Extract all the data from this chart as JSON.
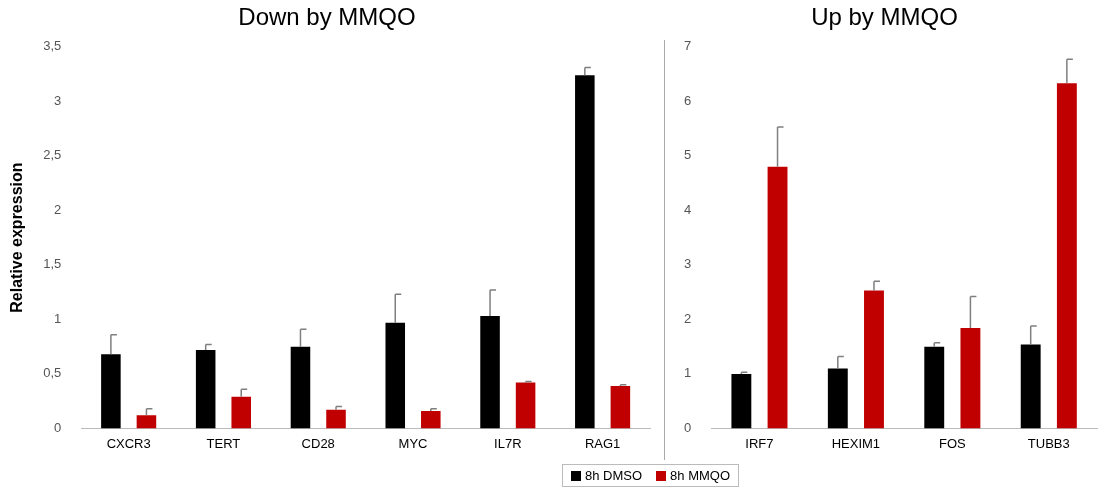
{
  "chart_data": [
    {
      "type": "bar",
      "title": "Down by MMQO",
      "ylabel": "Relative expression",
      "categories": [
        "CXCR3",
        "TERT",
        "CD28",
        "MYC",
        "IL7R",
        "RAG1"
      ],
      "ylim": [
        0,
        3.5
      ],
      "yticks": [
        0,
        {
          "value": 0.5,
          "label": "0,5"
        },
        1,
        {
          "value": 1.5,
          "label": "1,5"
        },
        2,
        {
          "value": 2.5,
          "label": "2,5"
        },
        3,
        {
          "value": 3.5,
          "label": "3,5"
        }
      ],
      "grid": false,
      "legend": "bottom",
      "series": [
        {
          "name": "8h DMSO",
          "color": "#000000",
          "values": [
            0.68,
            0.72,
            0.75,
            0.97,
            1.03,
            3.24
          ],
          "errors": [
            [
              0.68,
              0.86
            ],
            [
              0.72,
              0.77
            ],
            [
              0.75,
              0.91
            ],
            [
              0.97,
              1.23
            ],
            [
              1.03,
              1.27
            ],
            [
              3.24,
              3.31
            ]
          ]
        },
        {
          "name": "8h MMQO",
          "color": "#c00000",
          "values": [
            0.12,
            0.29,
            0.17,
            0.16,
            0.42,
            0.39
          ],
          "errors": [
            [
              0.12,
              0.18
            ],
            [
              0.29,
              0.36
            ],
            [
              0.17,
              0.2
            ],
            [
              0.16,
              0.18
            ],
            [
              0.42,
              0.43
            ],
            [
              0.39,
              0.4
            ]
          ]
        }
      ]
    },
    {
      "type": "bar",
      "title": "Up by MMQO",
      "categories": [
        "IRF7",
        "HEXIM1",
        "FOS",
        "TUBB3"
      ],
      "ylim": [
        0,
        7
      ],
      "yticks": [
        0,
        1,
        2,
        3,
        4,
        5,
        6,
        7
      ],
      "grid": false,
      "legend": "bottom",
      "series": [
        {
          "name": "8h DMSO",
          "color": "#000000",
          "values": [
            1.0,
            1.1,
            1.5,
            1.54
          ],
          "errors": [
            [
              1.0,
              1.03
            ],
            [
              1.1,
              1.32
            ],
            [
              1.5,
              1.57
            ],
            [
              1.54,
              1.88
            ]
          ]
        },
        {
          "name": "8h MMQO",
          "color": "#c00000",
          "values": [
            4.8,
            2.53,
            1.84,
            6.33
          ],
          "errors": [
            [
              4.8,
              5.53
            ],
            [
              2.53,
              2.7
            ],
            [
              1.84,
              2.42
            ],
            [
              6.33,
              6.77
            ]
          ]
        }
      ]
    }
  ]
}
